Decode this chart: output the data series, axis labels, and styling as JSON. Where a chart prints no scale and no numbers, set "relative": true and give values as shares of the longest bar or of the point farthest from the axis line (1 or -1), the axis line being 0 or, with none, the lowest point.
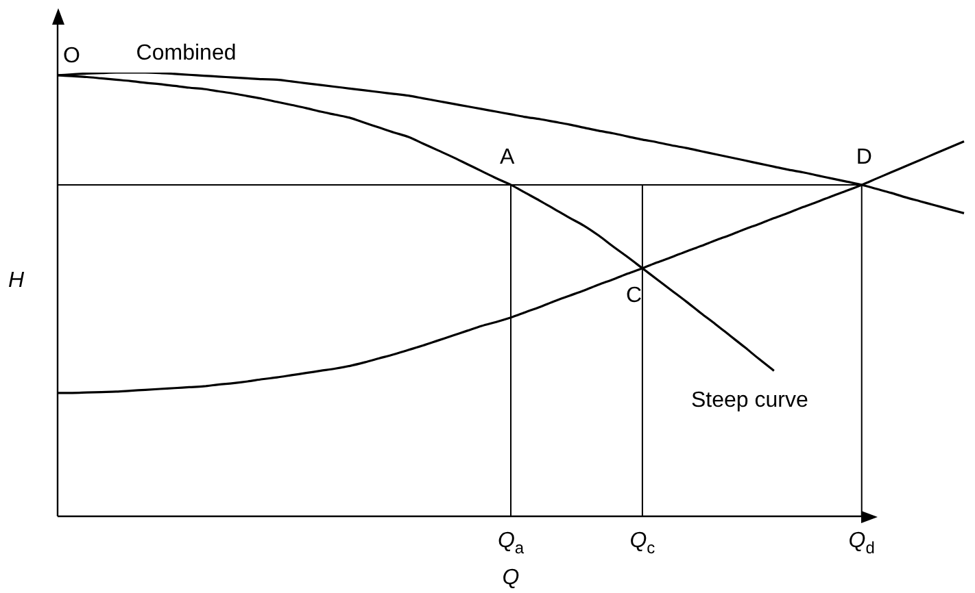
{
  "chart_data": {
    "type": "line",
    "relative": true,
    "xlabel": "Q",
    "ylabel": "H",
    "categories": [
      null,
      null,
      null,
      null,
      null,
      null,
      null,
      null,
      null,
      null,
      null,
      null,
      null,
      null,
      null,
      null,
      null,
      null,
      null,
      null,
      null,
      null,
      null,
      null,
      null,
      null,
      null,
      null,
      null,
      null,
      null,
      "Q$_{a}$",
      null,
      null,
      null,
      null,
      null,
      null,
      null,
      null,
      "Q$_{c}$",
      null,
      null,
      null,
      null,
      null,
      null,
      null,
      null,
      null,
      null,
      null,
      null,
      null,
      null,
      "Q$_{d}$",
      null,
      null,
      null,
      null,
      null,
      null,
      null
    ],
    "series": [
      {
        "name": "Combined",
        "color": "#000000",
        "values": [
          0.994,
          0.996,
          0.998,
          0.999,
          1.0,
          1.0,
          1.0,
          0.999,
          0.997,
          0.995,
          0.993,
          0.991,
          0.989,
          0.987,
          0.985,
          0.984,
          0.98,
          0.976,
          0.972,
          0.968,
          0.964,
          0.96,
          0.956,
          0.952,
          0.948,
          0.942,
          0.936,
          0.93,
          0.924,
          0.918,
          0.912,
          0.906,
          0.9,
          0.895,
          0.889,
          0.883,
          0.876,
          0.869,
          0.863,
          0.856,
          0.849,
          0.843,
          0.836,
          0.83,
          0.823,
          0.816,
          0.809,
          0.802,
          0.795,
          0.788,
          0.781,
          0.775,
          0.768,
          0.761,
          0.754,
          0.747,
          0.738,
          0.729,
          0.719,
          0.71,
          0.701,
          0.692,
          0.683
        ]
      },
      {
        "name": "Steep curve",
        "color": "#000000",
        "values": [
          0.994,
          0.992,
          0.99,
          0.987,
          0.984,
          0.981,
          0.977,
          0.974,
          0.97,
          0.966,
          0.963,
          0.958,
          0.953,
          0.947,
          0.941,
          0.934,
          0.927,
          0.92,
          0.912,
          0.905,
          0.898,
          0.887,
          0.876,
          0.865,
          0.855,
          0.84,
          0.825,
          0.81,
          0.794,
          0.778,
          0.762,
          0.747,
          0.729,
          0.711,
          0.692,
          0.673,
          0.655,
          0.633,
          0.608,
          0.584,
          0.559,
          0.534,
          0.509,
          0.484,
          0.458,
          0.433,
          0.407,
          0.381,
          0.354,
          0.328,
          null,
          null,
          null,
          null,
          null,
          null,
          null,
          null,
          null,
          null,
          null,
          null,
          null
        ]
      },
      {
        "color": "#000000",
        "values": [
          0.278,
          0.278,
          0.279,
          0.28,
          0.281,
          0.283,
          0.285,
          0.287,
          0.289,
          0.291,
          0.293,
          0.297,
          0.3,
          0.304,
          0.309,
          0.313,
          0.318,
          0.323,
          0.328,
          0.333,
          0.339,
          0.347,
          0.356,
          0.365,
          0.375,
          0.385,
          0.396,
          0.407,
          0.418,
          0.429,
          0.438,
          0.448,
          0.46,
          0.472,
          0.485,
          0.497,
          0.509,
          0.522,
          0.534,
          0.547,
          0.559,
          0.572,
          0.584,
          0.597,
          0.609,
          0.622,
          0.634,
          0.647,
          0.659,
          0.672,
          0.684,
          0.697,
          0.709,
          0.722,
          0.734,
          0.747,
          0.761,
          0.775,
          0.789,
          0.803,
          0.817,
          0.831,
          0.845
        ]
      }
    ],
    "ref_lines": [
      {
        "axis": "x",
        "value": "Q$_{a}$"
      },
      {
        "axis": "x",
        "value": "Q$_{c}$"
      },
      {
        "axis": "x",
        "value": "Q$_{d}$"
      },
      {
        "axis": "y",
        "value": 0.747
      }
    ],
    "annotations": [
      {
        "text": "O",
        "y": 0.994
      },
      {
        "text": "A",
        "x": "Q$_{a}$",
        "y": 0.747
      },
      {
        "text": "C",
        "x": "Q$_{c}$",
        "y": 0.559
      },
      {
        "text": "D",
        "x": "Q$_{d}$",
        "y": 0.747
      }
    ],
    "grid": false,
    "legend": false,
    "marker": "none",
    "line_style": "solid"
  }
}
